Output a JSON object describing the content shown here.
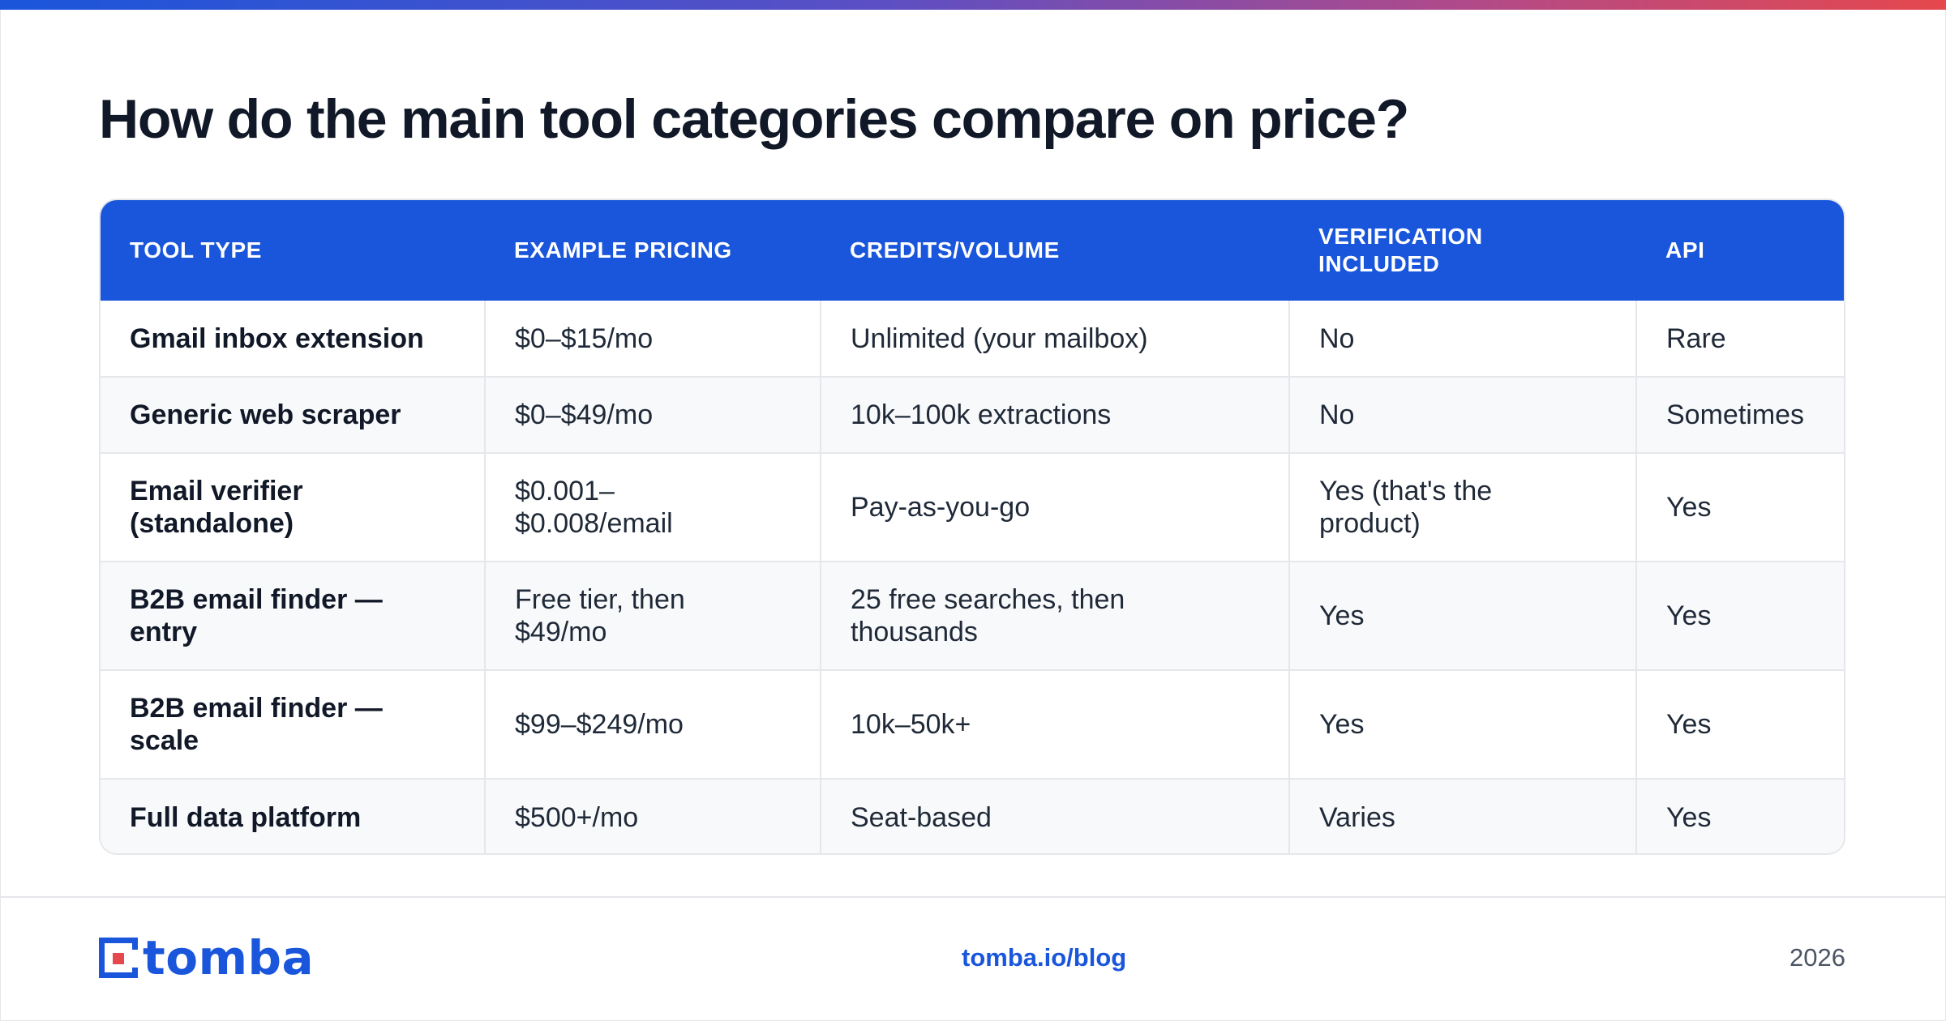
{
  "title": "How do the main tool categories compare on price?",
  "table": {
    "headers": [
      "TOOL TYPE",
      "EXAMPLE PRICING",
      "CREDITS/VOLUME",
      "VERIFICATION INCLUDED",
      "API"
    ],
    "rows": [
      [
        "Gmail inbox extension",
        "$0–$15/mo",
        "Unlimited (your mailbox)",
        "No",
        "Rare"
      ],
      [
        "Generic web scraper",
        "$0–$49/mo",
        "10k–100k extractions",
        "No",
        "Sometimes"
      ],
      [
        "Email verifier (standalone)",
        "$0.001–$0.008/email",
        "Pay-as-you-go",
        "Yes (that's the product)",
        "Yes"
      ],
      [
        "B2B email finder — entry",
        "Free tier, then $49/mo",
        "25 free searches, then thousands",
        "Yes",
        "Yes"
      ],
      [
        "B2B email finder — scale",
        "$99–$249/mo",
        "10k–50k+",
        "Yes",
        "Yes"
      ],
      [
        "Full data platform",
        "$500+/mo",
        "Seat-based",
        "Varies",
        "Yes"
      ]
    ]
  },
  "footer": {
    "logo_text": "tomba",
    "link": "tomba.io/blog",
    "year": "2026"
  },
  "colors": {
    "accent": "#1a56db",
    "logo_red": "#e5484d",
    "title": "#111827",
    "row_alt": "#f8f9fb",
    "border": "#e5e7eb"
  }
}
